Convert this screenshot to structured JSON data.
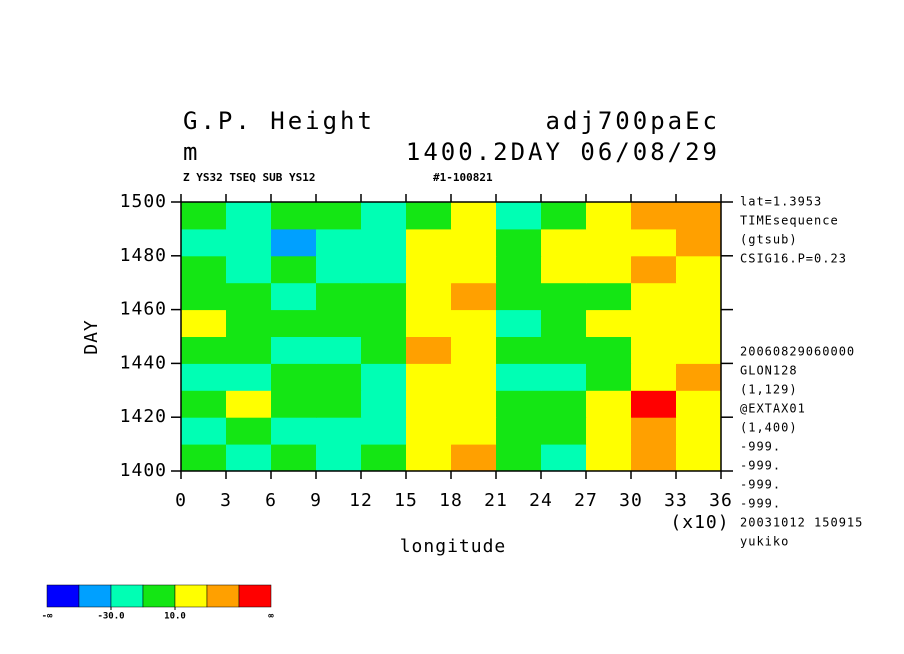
{
  "chart_data": {
    "type": "heatmap",
    "title": "G.P. Height",
    "experiment": "adj700paEc",
    "unit": "m",
    "time_label": "1400.2DAY 06/08/29",
    "subtitle": "Z YS32 TSEQ SUB YS12",
    "run_id": "#1-100821",
    "xlabel": "longitude",
    "x_multiplier": "(x10)",
    "ylabel": "DAY",
    "xlim": [
      0,
      36
    ],
    "xticks": [
      0,
      3,
      6,
      9,
      12,
      15,
      18,
      21,
      24,
      27,
      30,
      33,
      36
    ],
    "ylim": [
      1400,
      1500
    ],
    "yticks": [
      1400,
      1420,
      1440,
      1460,
      1480,
      1500
    ],
    "x": [
      1.5,
      4.5,
      7.5,
      10.5,
      13.5,
      16.5,
      19.5,
      22.5,
      25.5,
      28.5,
      31.5,
      34.5
    ],
    "y": [
      1405,
      1415,
      1425,
      1435,
      1445,
      1455,
      1465,
      1475,
      1485,
      1495
    ],
    "z": [
      [
        0,
        -20,
        0,
        -20,
        0,
        20,
        40,
        0,
        -20,
        20,
        40,
        20
      ],
      [
        -20,
        0,
        -20,
        -20,
        -20,
        20,
        20,
        0,
        0,
        20,
        40,
        20
      ],
      [
        0,
        20,
        0,
        0,
        -20,
        20,
        20,
        0,
        0,
        20,
        60,
        20
      ],
      [
        -20,
        -20,
        0,
        0,
        -20,
        20,
        20,
        -20,
        -20,
        0,
        20,
        40
      ],
      [
        0,
        0,
        -20,
        -20,
        0,
        40,
        20,
        0,
        0,
        0,
        20,
        20
      ],
      [
        20,
        0,
        0,
        0,
        0,
        20,
        20,
        -20,
        0,
        20,
        20,
        20
      ],
      [
        0,
        0,
        -20,
        0,
        0,
        20,
        40,
        0,
        0,
        0,
        20,
        20
      ],
      [
        0,
        -20,
        0,
        -20,
        -20,
        20,
        20,
        0,
        20,
        20,
        40,
        20
      ],
      [
        -20,
        -20,
        -40,
        -20,
        -20,
        20,
        20,
        0,
        20,
        20,
        20,
        40
      ],
      [
        0,
        -20,
        0,
        0,
        -20,
        0,
        20,
        -20,
        0,
        20,
        40,
        40
      ]
    ],
    "colorbar": {
      "colors": [
        "#0000ff",
        "#00a0ff",
        "#00ffb4",
        "#14e614",
        "#ffff00",
        "#ffa000",
        "#ff0000"
      ],
      "levels": [
        -50,
        -30,
        -10,
        10,
        30,
        50
      ],
      "ticks": [
        {
          "value": -30,
          "label": "-30.0"
        },
        {
          "value": 10,
          "label": "10.0"
        }
      ],
      "ends": [
        "-∞",
        "∞"
      ]
    },
    "annotations_top": [
      "lat=1.3953",
      "TIMEsequence",
      "(gtsub)",
      "CSIG16.P=0.23"
    ],
    "annotations_bottom": [
      "20060829060000",
      "GLON128",
      "(1,129)",
      "@EXTAX01",
      "(1,400)",
      "-999.",
      "-999.",
      "-999.",
      "-999.",
      "20031012 150915",
      "yukiko"
    ]
  }
}
